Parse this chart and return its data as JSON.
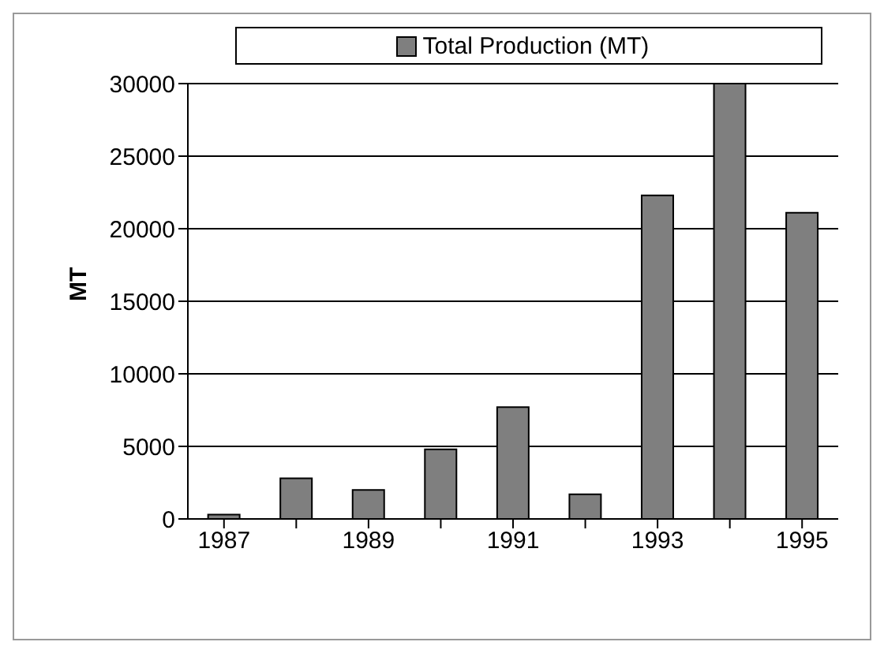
{
  "chart_data": {
    "type": "bar",
    "categories": [
      "1987",
      null,
      "1989",
      null,
      "1991",
      null,
      "1993",
      null,
      "1995"
    ],
    "series": [
      {
        "name": "Total Production (MT)",
        "color": "#7f7f7f",
        "values": [
          300,
          2800,
          2000,
          4800,
          7700,
          1700,
          22300,
          30000,
          21100
        ]
      }
    ],
    "ylabel": "MT",
    "ylim": [
      0,
      30000
    ],
    "yticks": [
      0,
      5000,
      10000,
      15000,
      20000,
      25000,
      30000
    ],
    "grid": "y",
    "legend": "top"
  }
}
